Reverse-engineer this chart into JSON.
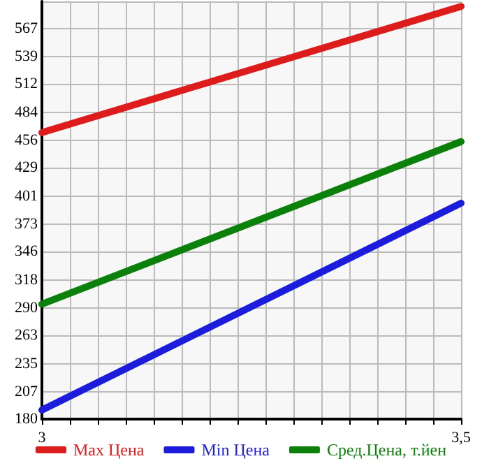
{
  "chart_data": {
    "type": "line",
    "x": [
      3,
      3.5
    ],
    "series": [
      {
        "name": "Max Цена",
        "color": "#dd1c1c",
        "values": [
          464,
          589
        ]
      },
      {
        "name": "Min Цена",
        "color": "#1c1cdd",
        "values": [
          189,
          394
        ]
      },
      {
        "name": "Сред.Цена, т.йен",
        "color": "#0b800b",
        "values": [
          294,
          455
        ]
      }
    ],
    "xlim": [
      3,
      3.5
    ],
    "xticks": [
      3,
      {
        "value": 3.0333,
        "label": null
      },
      {
        "value": 3.0667,
        "label": null
      },
      {
        "value": 3.1,
        "label": null
      },
      {
        "value": 3.1333,
        "label": null
      },
      {
        "value": 3.1667,
        "label": null
      },
      {
        "value": 3.2,
        "label": null
      },
      {
        "value": 3.2333,
        "label": null
      },
      {
        "value": 3.2667,
        "label": null
      },
      {
        "value": 3.3,
        "label": null
      },
      {
        "value": 3.3333,
        "label": null
      },
      {
        "value": 3.3667,
        "label": null
      },
      {
        "value": 3.4,
        "label": null
      },
      {
        "value": 3.4333,
        "label": null
      },
      {
        "value": 3.4667,
        "label": null
      },
      {
        "value": 3.5,
        "label": "3,5"
      }
    ],
    "ylim": [
      180,
      594
    ],
    "yticks": [
      180,
      207,
      235,
      263,
      290,
      318,
      346,
      373,
      401,
      429,
      456,
      484,
      512,
      539,
      567,
      {
        "value": 594,
        "label": null
      }
    ],
    "grid": true,
    "legend": "bottom",
    "marker": "none",
    "line_style": "solid"
  }
}
